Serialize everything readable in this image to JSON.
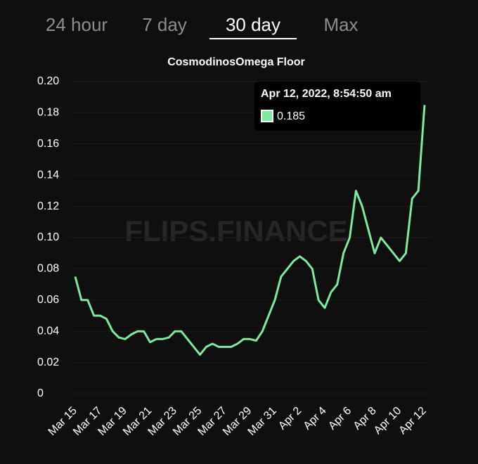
{
  "tabs": [
    "24 hour",
    "7 day",
    "30 day",
    "Max"
  ],
  "chart_data": {
    "type": "line",
    "title": "CosmodinosOmega Floor",
    "watermark": "FLIPS.FINANCE",
    "categories": [
      "Mar 15",
      null,
      null,
      null,
      "Mar 17",
      null,
      null,
      null,
      "Mar 19",
      null,
      null,
      null,
      "Mar 21",
      null,
      null,
      null,
      "Mar 23",
      null,
      null,
      null,
      "Mar 25",
      null,
      null,
      null,
      "Mar 27",
      null,
      null,
      null,
      "Mar 29",
      null,
      null,
      null,
      "Mar 31",
      null,
      null,
      null,
      "Apr 2",
      null,
      null,
      null,
      "Apr 4",
      null,
      null,
      null,
      "Apr 6",
      null,
      null,
      null,
      "Apr 8",
      null,
      null,
      null,
      "Apr 10",
      null,
      null,
      null,
      "Apr 12"
    ],
    "series": [
      {
        "name": "CosmodinosOmega Floor",
        "color": "#7eeaa0",
        "values": [
          0.075,
          0.06,
          0.06,
          0.05,
          0.05,
          0.048,
          0.04,
          0.036,
          0.035,
          0.038,
          0.04,
          0.04,
          0.033,
          0.035,
          0.035,
          0.036,
          0.04,
          0.04,
          0.035,
          0.03,
          0.025,
          0.03,
          0.032,
          0.03,
          0.03,
          0.03,
          0.032,
          0.035,
          0.035,
          0.034,
          0.04,
          0.05,
          0.06,
          0.075,
          0.08,
          0.085,
          0.088,
          0.085,
          0.08,
          0.06,
          0.055,
          0.065,
          0.07,
          0.09,
          0.1,
          0.13,
          0.12,
          0.105,
          0.09,
          0.1,
          0.095,
          0.09,
          0.085,
          0.09,
          0.125,
          0.13,
          0.185
        ]
      }
    ],
    "ylim": [
      0,
      0.2
    ],
    "yticks": [
      0,
      0.02,
      0.04,
      0.06,
      0.08,
      {
        "value": 0.1,
        "label": "0.10"
      },
      0.12,
      0.14,
      0.16,
      0.18,
      {
        "value": 0.2,
        "label": "0.20"
      }
    ],
    "grid": true,
    "tooltip": {
      "title": "Apr 12, 2022, 8:54:50 am",
      "value": 0.185
    }
  }
}
